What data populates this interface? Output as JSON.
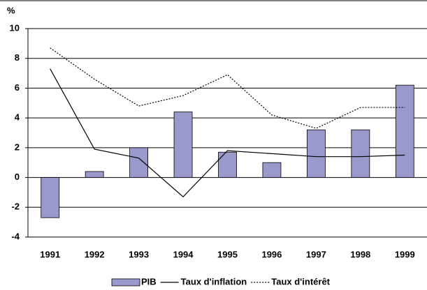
{
  "chart_data": {
    "type": "bar",
    "y_label": "%",
    "categories": [
      "1991",
      "1992",
      "1993",
      "1994",
      "1995",
      "1996",
      "1997",
      "1998",
      "1999"
    ],
    "series": [
      {
        "name": "PIB",
        "type": "bar",
        "color": "#9999cc",
        "values": [
          -2.7,
          0.4,
          2.0,
          4.4,
          1.7,
          1.0,
          3.2,
          3.2,
          6.2
        ]
      },
      {
        "name": "Taux d'inflation",
        "type": "line",
        "color": "#000000",
        "style": "solid",
        "values": [
          7.3,
          1.9,
          1.3,
          -1.3,
          1.8,
          1.6,
          1.4,
          1.4,
          1.5
        ]
      },
      {
        "name": "Taux d'intérêt",
        "type": "line",
        "color": "#000000",
        "style": "dotted",
        "values": [
          8.7,
          6.6,
          4.8,
          5.5,
          6.9,
          4.2,
          3.3,
          4.7,
          4.7
        ]
      }
    ],
    "ylim": [
      -4,
      10
    ],
    "yticks": [
      -4,
      -2,
      0,
      2,
      4,
      6,
      8,
      10
    ],
    "grid": true,
    "legend": "bottom"
  }
}
